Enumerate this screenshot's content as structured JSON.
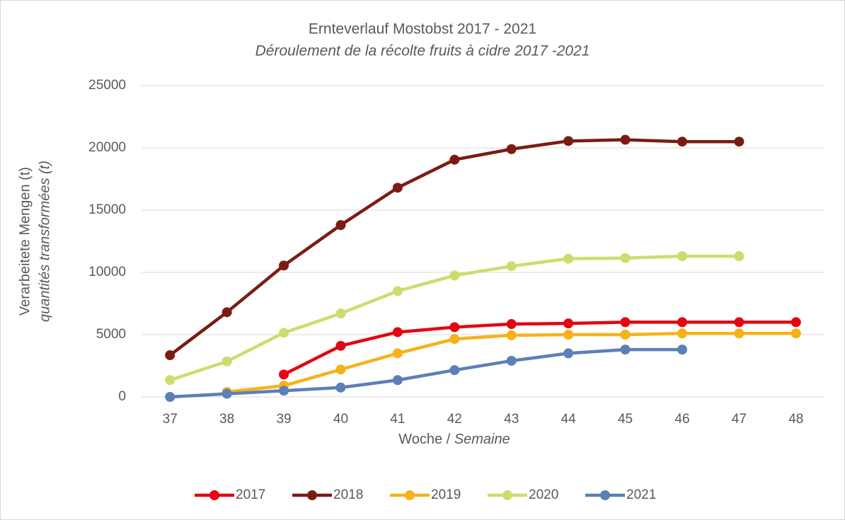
{
  "chart_data": {
    "type": "line",
    "title": "Ernteverlauf Mostobst 2017 - 2021",
    "subtitle": "Déroulement de la récolte fruits à cidre 2017 -2021",
    "ylabel": "Verarbeitete Mengen  (t)",
    "ylabel_fr": "quantités transformées (t)",
    "xlabel": "Woche / ",
    "xlabel_fr": "Semaine",
    "categories": [
      "37",
      "38",
      "39",
      "40",
      "41",
      "42",
      "43",
      "44",
      "45",
      "46",
      "47",
      "48"
    ],
    "ylim": [
      0,
      25000
    ],
    "yticks": [
      0,
      5000,
      10000,
      15000,
      20000,
      25000
    ],
    "grid": true,
    "legend": "bottom",
    "series": [
      {
        "name": "2017",
        "color": "#e30613",
        "values": [
          null,
          null,
          1800,
          4100,
          5200,
          5600,
          5850,
          5900,
          6000,
          6000,
          6000,
          6000
        ]
      },
      {
        "name": "2018",
        "color": "#7b1c13",
        "values": [
          3350,
          6800,
          10550,
          13800,
          16800,
          19050,
          19900,
          20550,
          20650,
          20500,
          20500,
          null
        ]
      },
      {
        "name": "2019",
        "color": "#f5b21c",
        "values": [
          null,
          400,
          900,
          2200,
          3500,
          4650,
          4950,
          5000,
          5000,
          5100,
          5100,
          5100
        ]
      },
      {
        "name": "2020",
        "color": "#cfdc6d",
        "values": [
          1350,
          2850,
          5150,
          6700,
          8500,
          9750,
          10500,
          11100,
          11150,
          11300,
          11300,
          null
        ]
      },
      {
        "name": "2021",
        "color": "#5c7fb6",
        "values": [
          0,
          250,
          500,
          750,
          1350,
          2150,
          2900,
          3500,
          3800,
          3800,
          null,
          null
        ]
      }
    ]
  }
}
